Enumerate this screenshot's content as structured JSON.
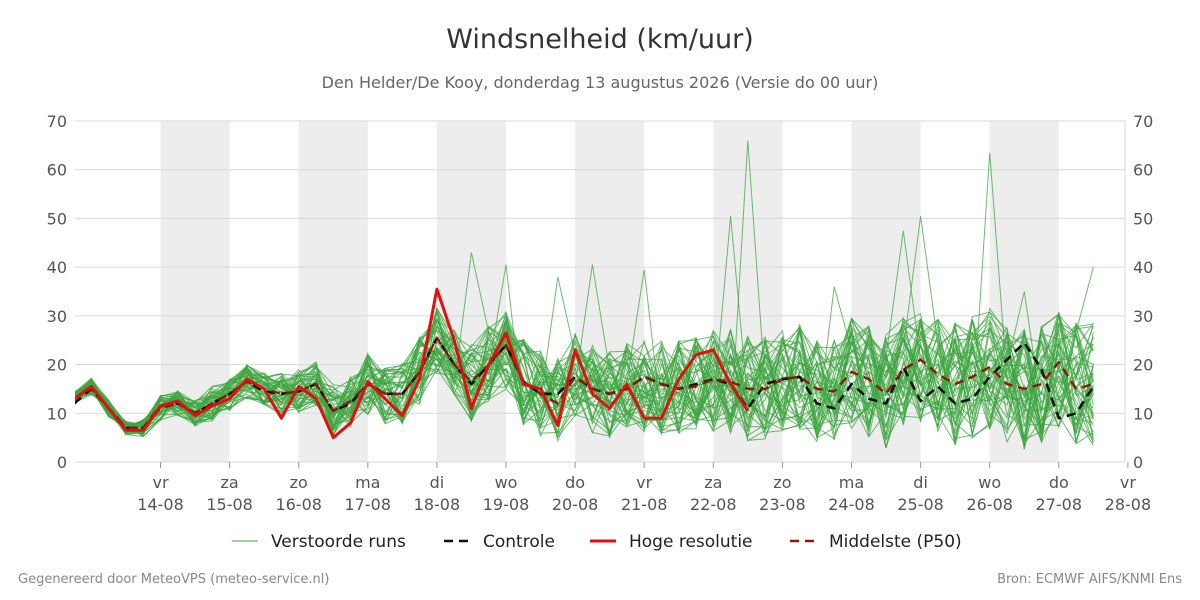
{
  "header": {
    "title": "Windsnelheid (km/uur)",
    "subtitle": "Den Helder/De Kooy, donderdag 13 augustus 2026 (Versie do 00 uur)"
  },
  "footer": {
    "left": "Gegenereerd door MeteoVPS (meteo-service.nl)",
    "right": "Bron: ECMWF AIFS/KNMI Ens"
  },
  "chart_data": {
    "type": "line",
    "x_unit": "day-index (0 = start of vr 14-08 minus 1.25 days)",
    "ylim": [
      0,
      70
    ],
    "yticks": [
      0,
      10,
      20,
      30,
      40,
      50,
      60,
      70
    ],
    "grid": true,
    "legend_position": "bottom",
    "day_labels": [
      {
        "day": "vr",
        "date": "14-08"
      },
      {
        "day": "za",
        "date": "15-08"
      },
      {
        "day": "zo",
        "date": "16-08"
      },
      {
        "day": "ma",
        "date": "17-08"
      },
      {
        "day": "di",
        "date": "18-08"
      },
      {
        "day": "wo",
        "date": "19-08"
      },
      {
        "day": "do",
        "date": "20-08"
      },
      {
        "day": "vr",
        "date": "21-08"
      },
      {
        "day": "za",
        "date": "22-08"
      },
      {
        "day": "zo",
        "date": "23-08"
      },
      {
        "day": "ma",
        "date": "24-08"
      },
      {
        "day": "di",
        "date": "25-08"
      },
      {
        "day": "wo",
        "date": "26-08"
      },
      {
        "day": "do",
        "date": "27-08"
      },
      {
        "day": "vr",
        "date": "28-08"
      }
    ],
    "colors": {
      "ensemble": "#3da640",
      "control": "#111111",
      "high_res": "#e01010",
      "median": "#8b1a0a",
      "weekend_band": "#ededed"
    },
    "legend": [
      {
        "key": "ensemble",
        "label": "Verstoorde runs"
      },
      {
        "key": "control",
        "label": "Controle"
      },
      {
        "key": "high_res",
        "label": "Hoge resolutie"
      },
      {
        "key": "median",
        "label": "Middelste (P50)"
      }
    ],
    "series": [
      {
        "name": "Hoge resolutie",
        "key": "high_res",
        "points": [
          [
            0.0,
            13
          ],
          [
            0.25,
            15.5
          ],
          [
            0.5,
            11
          ],
          [
            0.75,
            6.5
          ],
          [
            1.0,
            6.5
          ],
          [
            1.25,
            11.5
          ],
          [
            1.5,
            12.5
          ],
          [
            1.75,
            9.5
          ],
          [
            2.0,
            11.5
          ],
          [
            2.25,
            13
          ],
          [
            2.5,
            17
          ],
          [
            2.75,
            15
          ],
          [
            3.0,
            9
          ],
          [
            3.25,
            15.5
          ],
          [
            3.5,
            13
          ],
          [
            3.75,
            5
          ],
          [
            4.0,
            8
          ],
          [
            4.25,
            16.5
          ],
          [
            4.5,
            13
          ],
          [
            4.75,
            9.5
          ],
          [
            5.0,
            17
          ],
          [
            5.25,
            35.5
          ],
          [
            5.5,
            25
          ],
          [
            5.75,
            11
          ],
          [
            6.0,
            20
          ],
          [
            6.25,
            26.5
          ],
          [
            6.5,
            16
          ],
          [
            6.75,
            15
          ],
          [
            7.0,
            7.5
          ],
          [
            7.25,
            23
          ],
          [
            7.5,
            14
          ],
          [
            7.75,
            11
          ],
          [
            8.0,
            16
          ],
          [
            8.25,
            9
          ],
          [
            8.5,
            9
          ],
          [
            8.75,
            17
          ],
          [
            9.0,
            22
          ],
          [
            9.25,
            23
          ],
          [
            9.5,
            16
          ],
          [
            9.75,
            10.5
          ]
        ]
      },
      {
        "name": "Controle",
        "key": "control",
        "points": [
          [
            0.0,
            12
          ],
          [
            0.25,
            15
          ],
          [
            0.5,
            11
          ],
          [
            0.75,
            7
          ],
          [
            1.0,
            7
          ],
          [
            1.25,
            11.5
          ],
          [
            1.5,
            12
          ],
          [
            1.75,
            10
          ],
          [
            2.0,
            12
          ],
          [
            2.25,
            14
          ],
          [
            2.5,
            16.5
          ],
          [
            2.75,
            14.5
          ],
          [
            3.0,
            14
          ],
          [
            3.25,
            14.5
          ],
          [
            3.5,
            16
          ],
          [
            3.75,
            10.5
          ],
          [
            4.0,
            12
          ],
          [
            4.25,
            16
          ],
          [
            4.5,
            14
          ],
          [
            4.75,
            14
          ],
          [
            5.0,
            18.5
          ],
          [
            5.25,
            25.5
          ],
          [
            5.5,
            20
          ],
          [
            5.75,
            16
          ],
          [
            6.0,
            20
          ],
          [
            6.25,
            24
          ],
          [
            6.5,
            16.5
          ],
          [
            6.75,
            14
          ],
          [
            7.0,
            14
          ],
          [
            7.25,
            17.5
          ],
          [
            7.5,
            15
          ],
          [
            7.75,
            14
          ],
          [
            8.0,
            15
          ],
          [
            8.25,
            17.5
          ],
          [
            8.5,
            16
          ],
          [
            8.75,
            15
          ],
          [
            9.0,
            16
          ],
          [
            9.25,
            17
          ],
          [
            9.5,
            16
          ],
          [
            9.75,
            11
          ],
          [
            10.0,
            16
          ],
          [
            10.25,
            17
          ],
          [
            10.5,
            17.5
          ],
          [
            10.75,
            12
          ],
          [
            11.0,
            11
          ],
          [
            11.25,
            16
          ],
          [
            11.5,
            13
          ],
          [
            11.75,
            12
          ],
          [
            12.0,
            19.5
          ],
          [
            12.25,
            12.5
          ],
          [
            12.5,
            15.5
          ],
          [
            12.75,
            12
          ],
          [
            13.0,
            13
          ],
          [
            13.25,
            17.5
          ],
          [
            13.5,
            21
          ],
          [
            13.75,
            24.5
          ],
          [
            14.0,
            19
          ],
          [
            14.25,
            9
          ],
          [
            14.5,
            10
          ],
          [
            14.75,
            15.5
          ]
        ]
      },
      {
        "name": "Middelste (P50)",
        "key": "median",
        "points": [
          [
            0.0,
            13
          ],
          [
            0.25,
            15
          ],
          [
            0.5,
            11
          ],
          [
            0.75,
            7
          ],
          [
            1.0,
            7
          ],
          [
            1.25,
            11
          ],
          [
            1.5,
            12
          ],
          [
            1.75,
            10
          ],
          [
            2.0,
            12
          ],
          [
            2.25,
            14
          ],
          [
            2.5,
            16.5
          ],
          [
            2.75,
            15
          ],
          [
            3.0,
            14
          ],
          [
            3.25,
            14.5
          ],
          [
            3.5,
            16
          ],
          [
            3.75,
            10.5
          ],
          [
            4.0,
            12.5
          ],
          [
            4.25,
            16
          ],
          [
            4.5,
            14
          ],
          [
            4.75,
            14
          ],
          [
            5.0,
            18.5
          ],
          [
            5.25,
            25.5
          ],
          [
            5.5,
            20
          ],
          [
            5.75,
            16.5
          ],
          [
            6.0,
            20
          ],
          [
            6.25,
            24
          ],
          [
            6.5,
            16.5
          ],
          [
            6.75,
            14
          ],
          [
            7.0,
            12
          ],
          [
            7.25,
            17.5
          ],
          [
            7.5,
            15
          ],
          [
            7.75,
            14
          ],
          [
            8.0,
            15
          ],
          [
            8.25,
            17.5
          ],
          [
            8.5,
            16
          ],
          [
            8.75,
            15
          ],
          [
            9.0,
            15.5
          ],
          [
            9.25,
            17
          ],
          [
            9.5,
            16.5
          ],
          [
            9.75,
            15
          ],
          [
            10.0,
            15
          ],
          [
            10.25,
            17
          ],
          [
            10.5,
            17.5
          ],
          [
            10.75,
            15
          ],
          [
            11.0,
            14.5
          ],
          [
            11.25,
            18.5
          ],
          [
            11.5,
            17
          ],
          [
            11.75,
            14
          ],
          [
            12.0,
            19
          ],
          [
            12.25,
            21
          ],
          [
            12.5,
            18
          ],
          [
            12.75,
            16
          ],
          [
            13.0,
            17.5
          ],
          [
            13.25,
            19.5
          ],
          [
            13.5,
            16
          ],
          [
            13.75,
            15
          ],
          [
            14.0,
            16
          ],
          [
            14.25,
            20.5
          ],
          [
            14.5,
            15
          ],
          [
            14.75,
            16
          ]
        ]
      }
    ],
    "ensemble": {
      "name": "Verstoorde runs",
      "key": "ensemble",
      "members": 50,
      "x_step_days": 0.25,
      "center": [
        13,
        15.5,
        11,
        7,
        7,
        11,
        12,
        10,
        12,
        14,
        16.5,
        15,
        14,
        14.5,
        16,
        10.5,
        12.5,
        16,
        14,
        14,
        18.5,
        25,
        20,
        16.5,
        20,
        23,
        16.5,
        14,
        13,
        17.5,
        15,
        14,
        16,
        16,
        15,
        15.5,
        16,
        17,
        16.5,
        15,
        15.5,
        17,
        17.5,
        15,
        14.5,
        18,
        16.5,
        14.5,
        18.5,
        20,
        18,
        16,
        17.5,
        19,
        16.5,
        15,
        16,
        19,
        16,
        16
      ],
      "spread": [
        1.5,
        2,
        2,
        1.5,
        2,
        3,
        3,
        3,
        4,
        4,
        4,
        4,
        5,
        5,
        5,
        6,
        6,
        7,
        7,
        7,
        8,
        8,
        8,
        9,
        9,
        9,
        10,
        10,
        10,
        10,
        10,
        10,
        10,
        11,
        11,
        11,
        11,
        12,
        12,
        12,
        12,
        12,
        12,
        12,
        12,
        13,
        13,
        13,
        13,
        13,
        13,
        14,
        14,
        14,
        14,
        14,
        14,
        14,
        14,
        14
      ],
      "peaks": [
        [
          9.75,
          66
        ],
        [
          9.5,
          50.5
        ],
        [
          13.25,
          63.5
        ],
        [
          12.25,
          50.5
        ],
        [
          12.0,
          47.5
        ],
        [
          5.75,
          43
        ],
        [
          6.25,
          40.5
        ],
        [
          7.0,
          38
        ],
        [
          7.5,
          40.5
        ],
        [
          8.25,
          39.5
        ],
        [
          11.0,
          36
        ],
        [
          13.75,
          35
        ],
        [
          14.75,
          40
        ]
      ]
    }
  }
}
